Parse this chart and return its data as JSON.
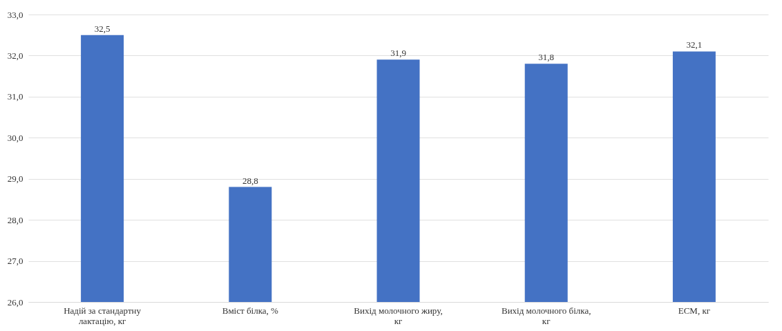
{
  "chart_data": {
    "type": "bar",
    "categories": [
      "Надій за стандартну лактацію, кг",
      "Вміст білка, %",
      "Вихід молочного жиру, кг",
      "Вихід молочного білка, кг",
      "ECM, кг"
    ],
    "values": [
      32.5,
      28.8,
      31.9,
      31.8,
      32.1
    ],
    "value_labels": [
      "32,5",
      "28,8",
      "31,9",
      "31,8",
      "32,1"
    ],
    "color": "#4472c4",
    "ylim": [
      26,
      33
    ],
    "yticks": [
      {
        "value": 26,
        "label": "26,0"
      },
      {
        "value": 27,
        "label": "27,0"
      },
      {
        "value": 28,
        "label": "28,0"
      },
      {
        "value": 29,
        "label": "29,0"
      },
      {
        "value": 30,
        "label": "30,0"
      },
      {
        "value": 31,
        "label": "31,0"
      },
      {
        "value": 32,
        "label": "32,0"
      },
      {
        "value": 33,
        "label": "33,0"
      }
    ],
    "grid": "y"
  }
}
